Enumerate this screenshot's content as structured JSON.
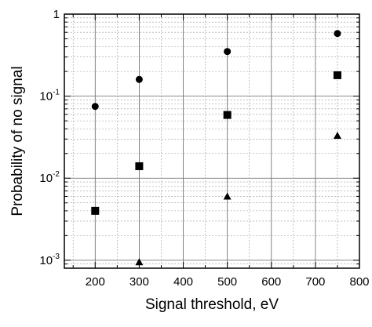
{
  "chart_data": {
    "type": "scatter",
    "title": "",
    "xlabel": "Signal threshold, eV",
    "ylabel": "Probability of no signal",
    "xlim": [
      130,
      800
    ],
    "ylim": [
      0.0008,
      1
    ],
    "y_scale": "log",
    "grid": true,
    "x_ticks": [
      200,
      300,
      400,
      500,
      600,
      700,
      800
    ],
    "x_tick_labels": [
      "200",
      "300",
      "400",
      "500",
      "600",
      "700",
      "800"
    ],
    "y_ticks": [
      {
        "value": 0.001,
        "base": "10",
        "exp": "-3"
      },
      {
        "value": 0.01,
        "base": "10",
        "exp": "-2"
      },
      {
        "value": 0.1,
        "base": "10",
        "exp": "-1"
      },
      {
        "value": 1,
        "base": "1",
        "exp": ""
      }
    ],
    "series": [
      {
        "marker": "circle",
        "x": [
          200,
          300,
          500,
          750
        ],
        "y": [
          0.075,
          0.16,
          0.35,
          0.58
        ]
      },
      {
        "marker": "square",
        "x": [
          200,
          300,
          500,
          750
        ],
        "y": [
          0.004,
          0.014,
          0.059,
          0.18
        ]
      },
      {
        "marker": "triangle",
        "x": [
          300,
          500,
          750
        ],
        "y": [
          0.00095,
          0.006,
          0.033
        ]
      }
    ]
  }
}
